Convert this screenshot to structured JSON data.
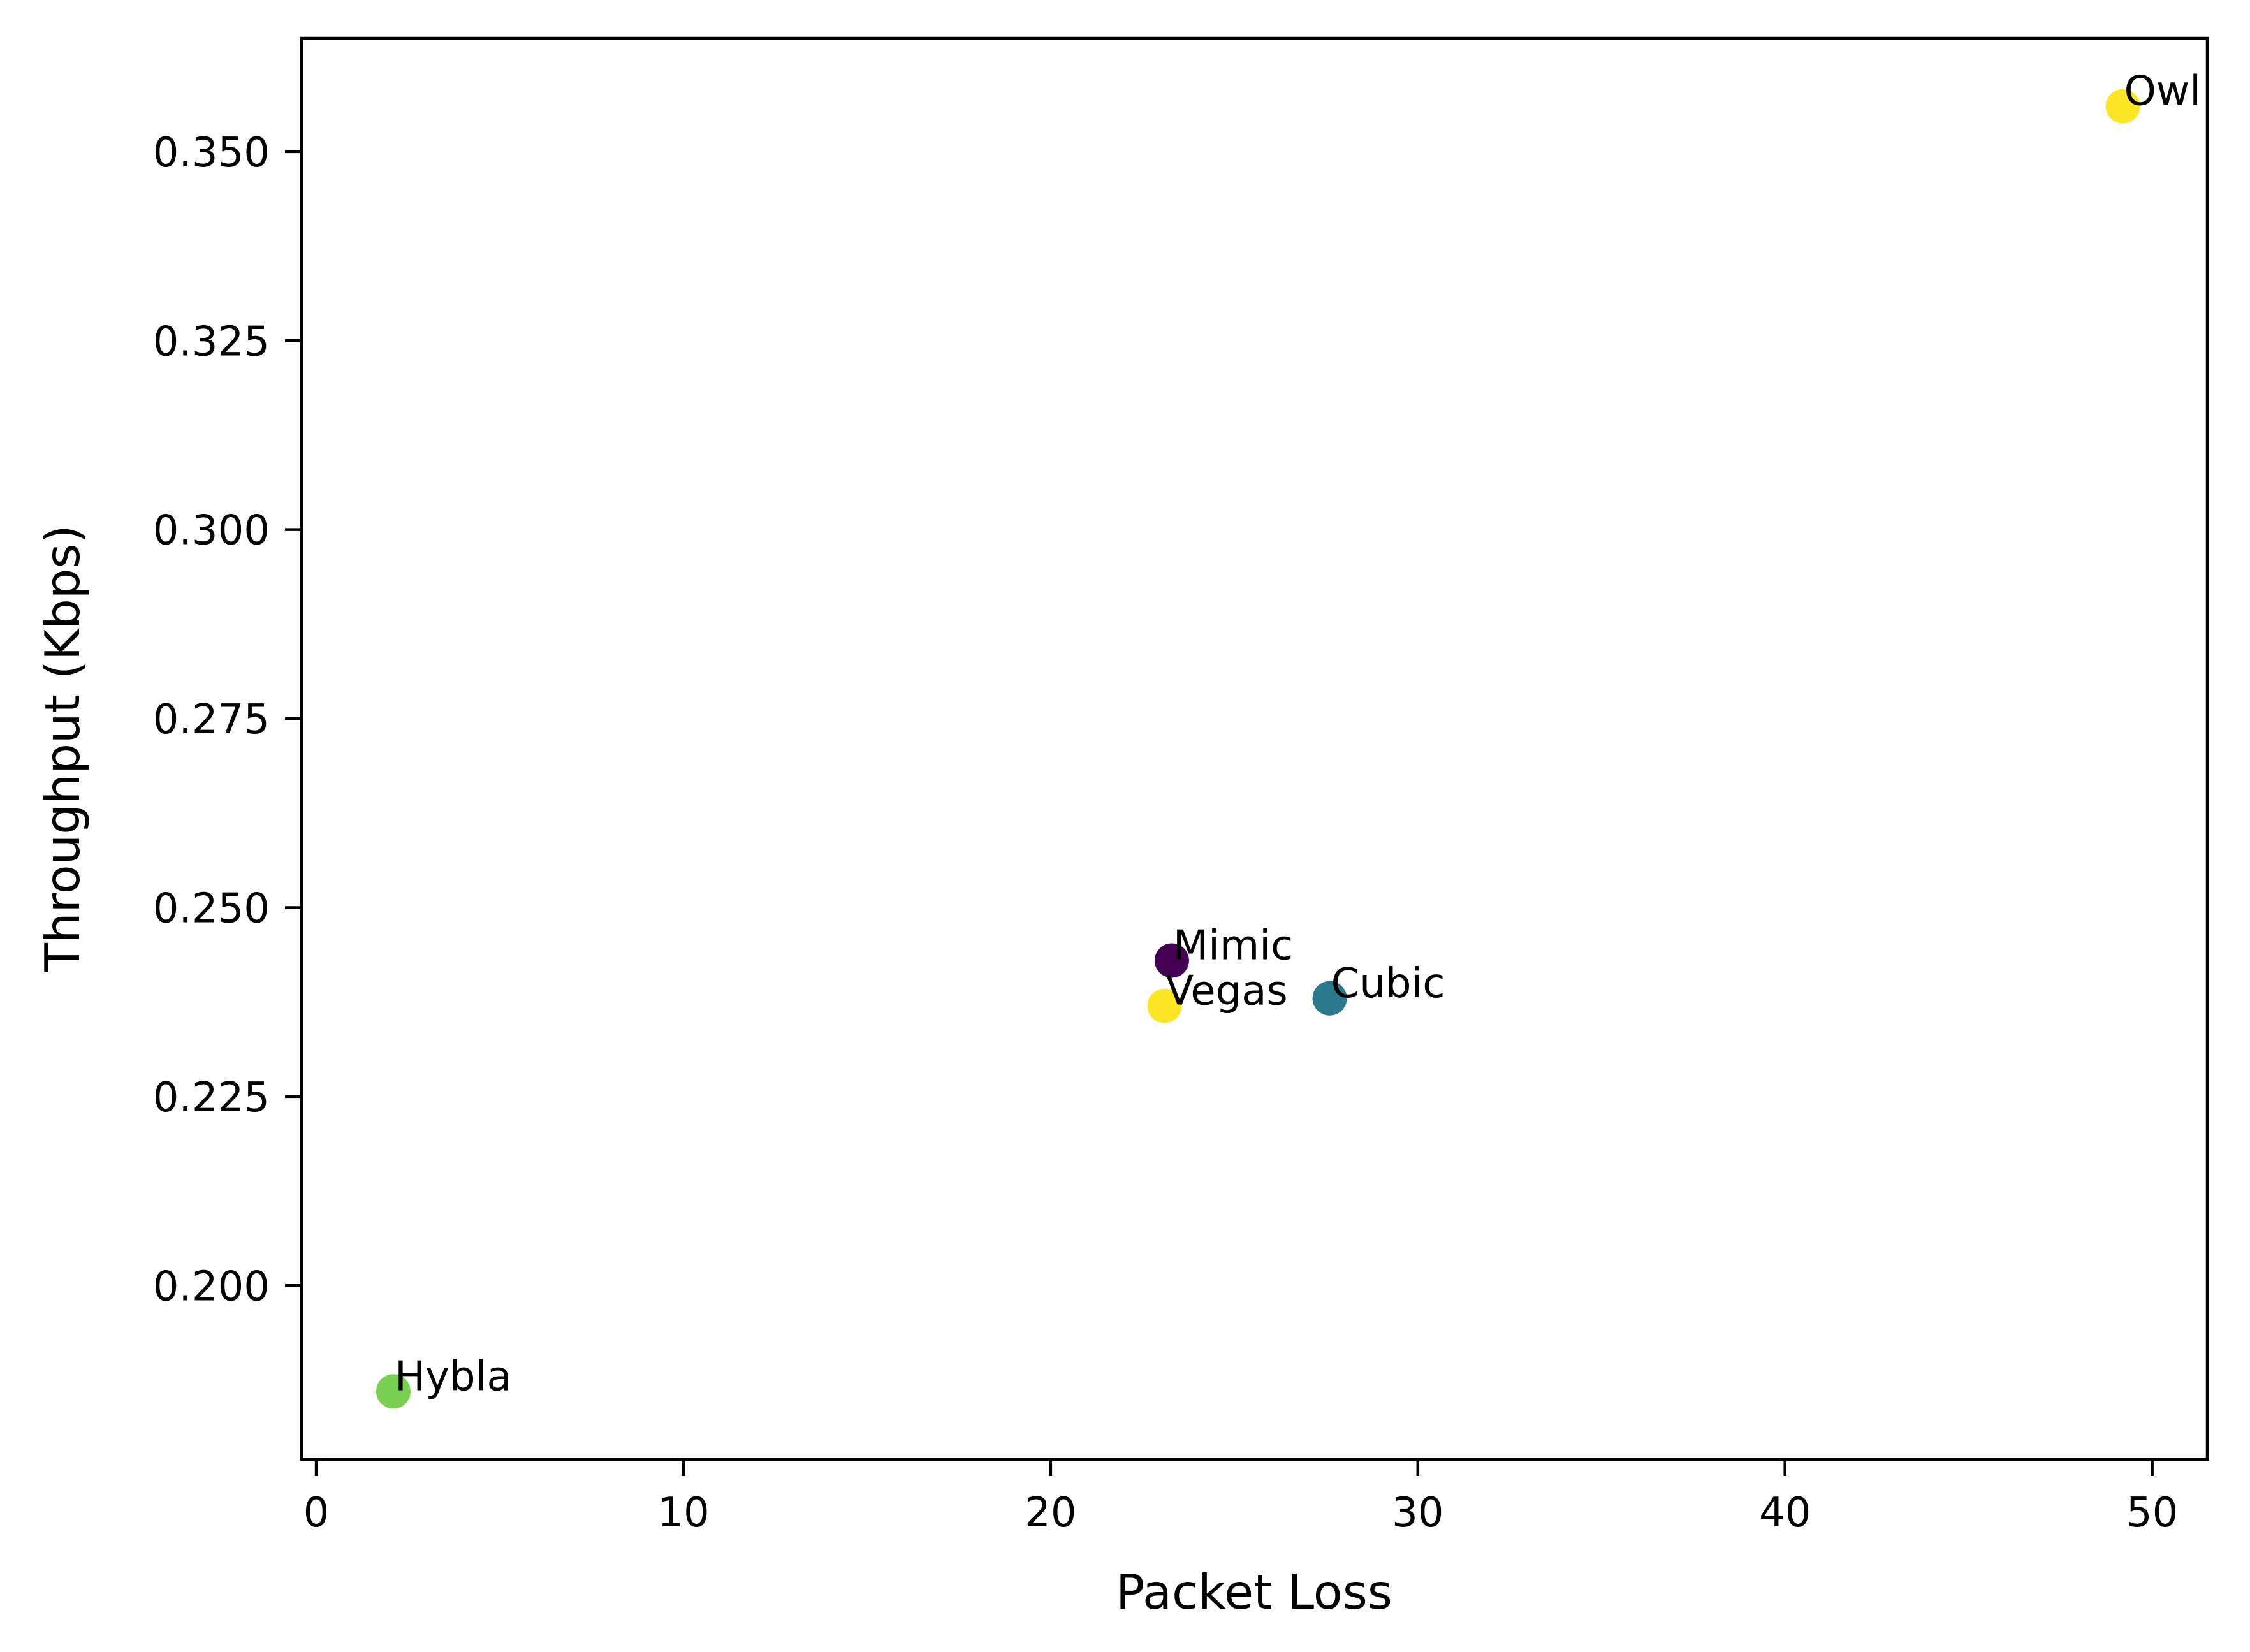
{
  "chart_data": {
    "type": "scatter",
    "title": "",
    "xlabel": "Packet Loss",
    "ylabel": "Throughput (Kbps)",
    "xlim": [
      -0.4,
      51.5
    ],
    "ylim": [
      0.177,
      0.365
    ],
    "grid": false,
    "legend": "none",
    "x_ticks": [
      {
        "value": 0,
        "label": "0"
      },
      {
        "value": 10,
        "label": "10"
      },
      {
        "value": 20,
        "label": "20"
      },
      {
        "value": 30,
        "label": "30"
      },
      {
        "value": 40,
        "label": "40"
      },
      {
        "value": 50,
        "label": "50"
      }
    ],
    "y_ticks": [
      {
        "value": 0.2,
        "label": "0.200"
      },
      {
        "value": 0.225,
        "label": "0.225"
      },
      {
        "value": 0.25,
        "label": "0.250"
      },
      {
        "value": 0.275,
        "label": "0.275"
      },
      {
        "value": 0.3,
        "label": "0.300"
      },
      {
        "value": 0.325,
        "label": "0.325"
      },
      {
        "value": 0.35,
        "label": "0.350"
      }
    ],
    "points": [
      {
        "label": "Owl",
        "x": 49.2,
        "y": 0.356,
        "color": "#fde725"
      },
      {
        "label": "Mimic",
        "x": 23.3,
        "y": 0.243,
        "color": "#440154"
      },
      {
        "label": "Vegas",
        "x": 23.1,
        "y": 0.237,
        "color": "#fde725"
      },
      {
        "label": "Cubic",
        "x": 27.6,
        "y": 0.238,
        "color": "#2a788e"
      },
      {
        "label": "Hybla",
        "x": 2.1,
        "y": 0.186,
        "color": "#7ad151"
      }
    ]
  }
}
